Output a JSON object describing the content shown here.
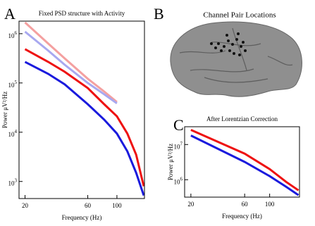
{
  "panel_labels": [
    "A",
    "B",
    "C"
  ],
  "image_panel": {
    "title": "Channel Pair Locations"
  },
  "chart_data": [
    {
      "type": "line",
      "title": "Fixed PSD structure with Activity",
      "xlabel": "Frequency (Hz)",
      "ylabel": "Power μV²/Hz",
      "xscale": "log",
      "yscale": "log",
      "x": [
        20,
        30,
        40,
        60,
        80,
        100,
        120,
        140,
        160
      ],
      "xlim": [
        18,
        162
      ],
      "xticks": [
        20,
        60,
        100
      ],
      "ylim": [
        450,
        1800000
      ],
      "yticks": [
        {
          "value": 1000,
          "label": "10",
          "exponent": "3"
        },
        {
          "value": 10000,
          "label": "10",
          "exponent": "4"
        },
        {
          "value": 100000,
          "label": "10",
          "exponent": "5"
        },
        {
          "value": 1000000,
          "label": "10",
          "exponent": "6"
        }
      ],
      "series": [
        {
          "color": "#f4a0a0",
          "values": [
            1690000,
            630000,
            316000,
            122000,
            67000,
            41000,
            null,
            null,
            null
          ]
        },
        {
          "color": "#a8a8f0",
          "values": [
            1100000,
            454000,
            235000,
            100000,
            59000,
            38500,
            null,
            null,
            null
          ]
        },
        {
          "color": "#ee1111",
          "values": [
            485000,
            268000,
            169000,
            79000,
            37000,
            21000,
            9400,
            3500,
            800
          ]
        },
        {
          "color": "#1a1add",
          "values": [
            268000,
            153000,
            94000,
            37000,
            18000,
            9400,
            4100,
            1500,
            520
          ]
        }
      ]
    },
    {
      "type": "line",
      "title": "After Lorentzian Correction",
      "xlabel": "Frequency (Hz)",
      "ylabel": "Power μV²/Hz",
      "xscale": "log",
      "yscale": "log",
      "x": [
        20,
        60,
        100,
        140,
        180
      ],
      "xlim": [
        17.6,
        184
      ],
      "xticks": [
        20,
        60,
        100
      ],
      "ylim": [
        320000,
        32000000
      ],
      "yticks": [
        {
          "value": 1000000,
          "label": "10",
          "exponent": "6"
        },
        {
          "value": 10000000,
          "label": "10",
          "exponent": "7"
        }
      ],
      "series": [
        {
          "color": "#ee1111",
          "values": [
            26000000,
            5500000,
            2000000,
            870000,
            500000
          ]
        },
        {
          "color": "#1a1add",
          "values": [
            18000000,
            3200000,
            1260000,
            630000,
            365000
          ]
        }
      ]
    }
  ]
}
